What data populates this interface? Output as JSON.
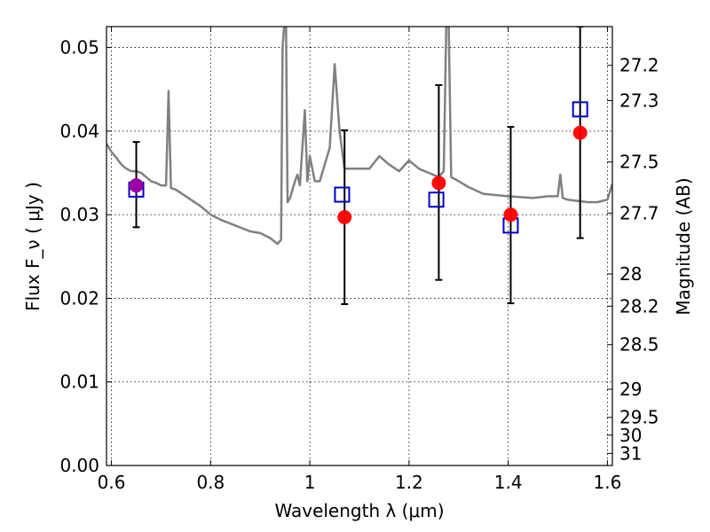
{
  "chart_data": {
    "type": "scatter",
    "xlabel": "Wavelength  λ (μm)",
    "ylabel": "Flux  F_ν  ( μJy )",
    "ylabel_right": "Magnitude (AB)",
    "xlim": [
      0.59,
      1.61
    ],
    "ylim": [
      0.0,
      0.0525
    ],
    "grid": true,
    "x_ticks": [
      0.6,
      0.8,
      1.0,
      1.2,
      1.4,
      1.6
    ],
    "x_tick_labels": [
      "0.6",
      "0.8",
      "1",
      "1.2",
      "1.4",
      "1.6"
    ],
    "y_ticks": [
      0.0,
      0.01,
      0.02,
      0.03,
      0.04,
      0.05
    ],
    "y_tick_labels": [
      "0.00",
      "0.01",
      "0.02",
      "0.03",
      "0.04",
      "0.05"
    ],
    "right_ticks": [
      {
        "mag": 27.2,
        "label": "27.2"
      },
      {
        "mag": 27.3,
        "label": "27.3"
      },
      {
        "mag": 27.5,
        "label": "27.5"
      },
      {
        "mag": 27.7,
        "label": "27.7"
      },
      {
        "mag": 28.0,
        "label": "28"
      },
      {
        "mag": 28.2,
        "label": "28.2"
      },
      {
        "mag": 28.5,
        "label": "28.5"
      },
      {
        "mag": 29.0,
        "label": "29"
      },
      {
        "mag": 29.5,
        "label": "29.5"
      },
      {
        "mag": 30.0,
        "label": "30"
      },
      {
        "mag": 31.0,
        "label": "31"
      }
    ],
    "series": [
      {
        "type": "line",
        "color": "#808080",
        "points": [
          [
            0.59,
            0.0385
          ],
          [
            0.6,
            0.0375
          ],
          [
            0.61,
            0.0368
          ],
          [
            0.62,
            0.036
          ],
          [
            0.63,
            0.0355
          ],
          [
            0.64,
            0.0352
          ],
          [
            0.65,
            0.0352
          ],
          [
            0.66,
            0.035
          ],
          [
            0.67,
            0.0345
          ],
          [
            0.68,
            0.034
          ],
          [
            0.69,
            0.0338
          ],
          [
            0.7,
            0.0335
          ],
          [
            0.71,
            0.0335
          ],
          [
            0.715,
            0.0448
          ],
          [
            0.72,
            0.0332
          ],
          [
            0.73,
            0.033
          ],
          [
            0.75,
            0.0322
          ],
          [
            0.78,
            0.031
          ],
          [
            0.8,
            0.03
          ],
          [
            0.82,
            0.0294
          ],
          [
            0.85,
            0.0287
          ],
          [
            0.88,
            0.028
          ],
          [
            0.9,
            0.0278
          ],
          [
            0.92,
            0.0272
          ],
          [
            0.935,
            0.0265
          ],
          [
            0.942,
            0.027
          ],
          [
            0.945,
            0.05
          ],
          [
            0.948,
            0.0525
          ],
          [
            0.952,
            0.0525
          ],
          [
            0.955,
            0.0315
          ],
          [
            0.96,
            0.032
          ],
          [
            0.97,
            0.034
          ],
          [
            0.975,
            0.0348
          ],
          [
            0.98,
            0.0335
          ],
          [
            0.99,
            0.0425
          ],
          [
            0.995,
            0.034
          ],
          [
            1.0,
            0.037
          ],
          [
            1.01,
            0.034
          ],
          [
            1.02,
            0.034
          ],
          [
            1.04,
            0.038
          ],
          [
            1.05,
            0.048
          ],
          [
            1.06,
            0.04
          ],
          [
            1.07,
            0.0355
          ],
          [
            1.1,
            0.0355
          ],
          [
            1.12,
            0.0355
          ],
          [
            1.14,
            0.037
          ],
          [
            1.16,
            0.036
          ],
          [
            1.18,
            0.0352
          ],
          [
            1.2,
            0.0365
          ],
          [
            1.22,
            0.0355
          ],
          [
            1.24,
            0.035
          ],
          [
            1.26,
            0.0345
          ],
          [
            1.27,
            0.0352
          ],
          [
            1.275,
            0.0525
          ],
          [
            1.28,
            0.0525
          ],
          [
            1.285,
            0.0345
          ],
          [
            1.3,
            0.034
          ],
          [
            1.32,
            0.0333
          ],
          [
            1.35,
            0.0325
          ],
          [
            1.4,
            0.0322
          ],
          [
            1.45,
            0.032
          ],
          [
            1.48,
            0.0322
          ],
          [
            1.5,
            0.0322
          ],
          [
            1.505,
            0.0348
          ],
          [
            1.51,
            0.032
          ],
          [
            1.52,
            0.0318
          ],
          [
            1.56,
            0.0315
          ],
          [
            1.58,
            0.0315
          ],
          [
            1.6,
            0.0318
          ],
          [
            1.61,
            0.0337
          ]
        ]
      },
      {
        "type": "errorbar",
        "color": "#000000",
        "points": [
          {
            "x": 0.65,
            "y": 0.0335,
            "ylo": 0.0285,
            "yhi": 0.0387
          },
          {
            "x": 1.07,
            "y": 0.0297,
            "ylo": 0.0193,
            "yhi": 0.0401
          },
          {
            "x": 1.26,
            "y": 0.0338,
            "ylo": 0.0222,
            "yhi": 0.0455
          },
          {
            "x": 1.405,
            "y": 0.03,
            "ylo": 0.0194,
            "yhi": 0.0405
          },
          {
            "x": 1.545,
            "y": 0.0398,
            "ylo": 0.0272,
            "yhi": 0.0525
          }
        ]
      },
      {
        "type": "scatter",
        "marker": "square-open",
        "color": "#0000cc",
        "points": [
          [
            0.65,
            0.033
          ],
          [
            1.065,
            0.0324
          ],
          [
            1.255,
            0.0318
          ],
          [
            1.405,
            0.0287
          ],
          [
            1.545,
            0.0426
          ]
        ]
      },
      {
        "type": "scatter",
        "marker": "circle-filled",
        "color": "#ff0000",
        "points": [
          [
            0.65,
            0.0335
          ],
          [
            1.07,
            0.0297
          ],
          [
            1.26,
            0.0338
          ],
          [
            1.405,
            0.03
          ],
          [
            1.545,
            0.0398
          ]
        ]
      }
    ]
  }
}
